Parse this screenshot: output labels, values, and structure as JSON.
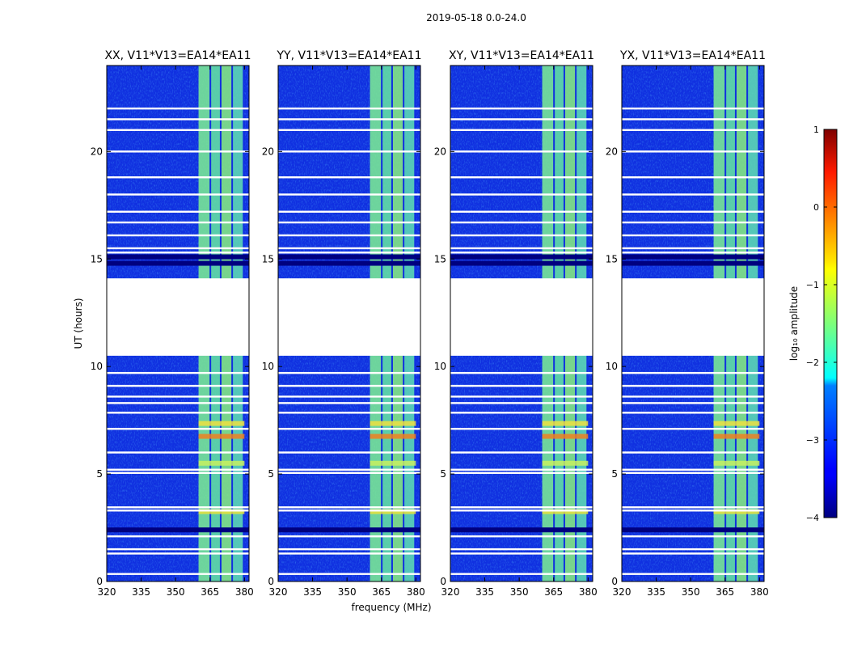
{
  "figure_title": "2019-05-18 0.0-24.0",
  "chart_data": {
    "type": "heatmap",
    "suptitle": "2019-05-18 0.0-24.0",
    "xlabel": "frequency (MHz)",
    "ylabel": "UT (hours)",
    "xlim": [
      320,
      382
    ],
    "ylim": [
      0,
      24
    ],
    "xticks": [
      320,
      335,
      350,
      365,
      380
    ],
    "yticks": [
      0,
      5,
      10,
      15,
      20
    ],
    "panels": [
      {
        "title": "XX, V11*V13=EA14*EA11"
      },
      {
        "title": "YY, V11*V13=EA14*EA11"
      },
      {
        "title": "XY, V11*V13=EA14*EA11"
      },
      {
        "title": "YX, V11*V13=EA14*EA11"
      }
    ],
    "bright_band_mhz": [
      360,
      380
    ],
    "band_channel_edges_mhz": [
      360,
      365.5,
      370,
      375,
      380
    ],
    "data_gap_hours": [
      10.5,
      14.1
    ],
    "flagged_rows_hours": [
      0.35,
      1.3,
      1.5,
      2.1,
      3.3,
      3.45,
      5.05,
      5.2,
      6.0,
      7.1,
      7.85,
      8.3,
      8.6,
      9.1,
      9.7,
      15.3,
      15.5,
      16.1,
      16.7,
      17.2,
      18.0,
      18.8,
      20.0,
      21.0,
      21.5,
      22.0
    ],
    "dark_rows_hours": [
      2.4,
      14.8,
      15.1
    ],
    "colorbar": {
      "label": "log₁₀ amplitude",
      "range": [
        -4,
        1
      ],
      "ticks": [
        -4,
        -3,
        -2,
        -1,
        0,
        1
      ],
      "colormap": "jet"
    }
  },
  "colorbar_tick_labels": [
    "−4",
    "−3",
    "−2",
    "−1",
    "0",
    "1"
  ]
}
